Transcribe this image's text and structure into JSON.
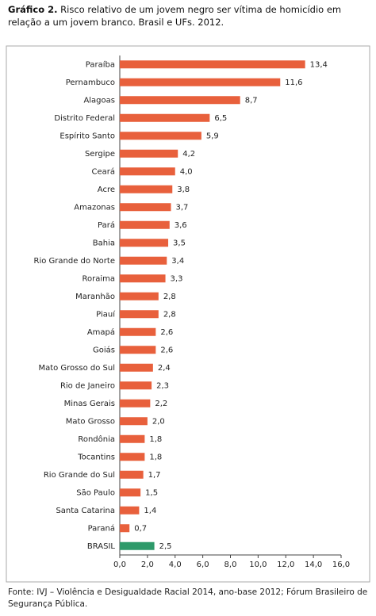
{
  "chart_data": {
    "type": "barh",
    "figure_label": "Gráfico 2.",
    "title": "Risco relativo de um jovem negro ser vítima de homicídio em relação a um jovem branco. Brasil e UFs. 2012.",
    "source": "Fonte: IVJ – Violência e Desigualdade Racial 2014, ano-base 2012; Fórum Brasileiro de Segurança Pública.",
    "categories": [
      "Paraíba",
      "Pernambuco",
      "Alagoas",
      "Distrito Federal",
      "Espírito Santo",
      "Sergipe",
      "Ceará",
      "Acre",
      "Amazonas",
      "Pará",
      "Bahia",
      "Rio Grande do Norte",
      "Roraima",
      "Maranhão",
      "Piauí",
      "Amapá",
      "Goiás",
      "Mato Grosso do Sul",
      "Rio de Janeiro",
      "Minas Gerais",
      "Mato Grosso",
      "Rondônia",
      "Tocantins",
      "Rio Grande do Sul",
      "São Paulo",
      "Santa Catarina",
      "Paraná",
      "BRASIL"
    ],
    "values": [
      13.4,
      11.6,
      8.7,
      6.5,
      5.9,
      4.2,
      4.0,
      3.8,
      3.7,
      3.6,
      3.5,
      3.4,
      3.3,
      2.8,
      2.8,
      2.6,
      2.6,
      2.4,
      2.3,
      2.2,
      2.0,
      1.8,
      1.8,
      1.7,
      1.5,
      1.4,
      0.7,
      2.5
    ],
    "value_labels": [
      "13,4",
      "11,6",
      "8,7",
      "6,5",
      "5,9",
      "4,2",
      "4,0",
      "3,8",
      "3,7",
      "3,6",
      "3,5",
      "3,4",
      "3,3",
      "2,8",
      "2,8",
      "2,6",
      "2,6",
      "2,4",
      "2,3",
      "2,2",
      "2,0",
      "1,8",
      "1,8",
      "1,7",
      "1,5",
      "1,4",
      "0,7",
      "2,5"
    ],
    "colors": [
      "#e8603c",
      "#e8603c",
      "#e8603c",
      "#e8603c",
      "#e8603c",
      "#e8603c",
      "#e8603c",
      "#e8603c",
      "#e8603c",
      "#e8603c",
      "#e8603c",
      "#e8603c",
      "#e8603c",
      "#e8603c",
      "#e8603c",
      "#e8603c",
      "#e8603c",
      "#e8603c",
      "#e8603c",
      "#e8603c",
      "#e8603c",
      "#e8603c",
      "#e8603c",
      "#e8603c",
      "#e8603c",
      "#e8603c",
      "#e8603c",
      "#2e9a6a"
    ],
    "xlim": [
      0,
      16
    ],
    "xticks": [
      {
        "value": 0,
        "label": "0,0"
      },
      {
        "value": 2,
        "label": "2,0"
      },
      {
        "value": 4,
        "label": "4,0"
      },
      {
        "value": 6,
        "label": "6,0"
      },
      {
        "value": 8,
        "label": "8,0"
      },
      {
        "value": 10,
        "label": "10,0"
      },
      {
        "value": 12,
        "label": "12,0"
      },
      {
        "value": 14,
        "label": "14,0"
      },
      {
        "value": 16,
        "label": "16,0"
      }
    ]
  }
}
